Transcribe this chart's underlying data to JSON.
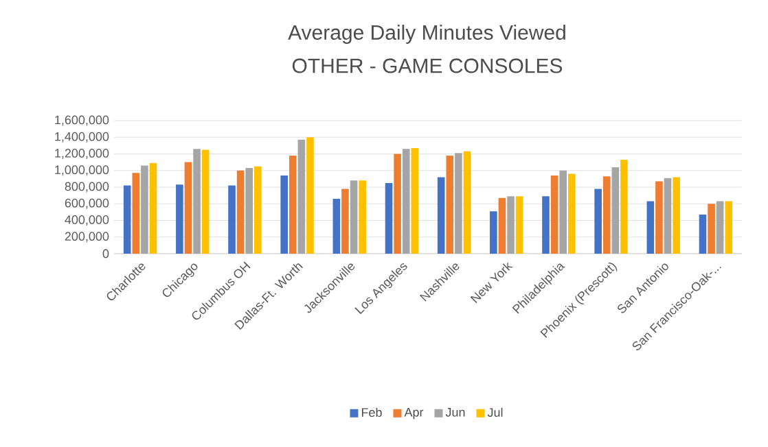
{
  "chart_data": {
    "type": "bar",
    "title": "Average Daily Minutes Viewed",
    "subtitle": "OTHER - GAME CONSOLES",
    "categories": [
      "Charlotte",
      "Chicago",
      "Columbus OH",
      "Dallas-Ft. Worth",
      "Jacksonville",
      "Los Angeles",
      "Nashville",
      "New York",
      "Philadelphia",
      "Phoenix (Prescott)",
      "San Antonio",
      "San Francisco-Oak-..."
    ],
    "series": [
      {
        "name": "Feb",
        "color": "#4472c4",
        "values": [
          820000,
          830000,
          820000,
          940000,
          660000,
          850000,
          920000,
          510000,
          690000,
          780000,
          630000,
          470000
        ]
      },
      {
        "name": "Apr",
        "color": "#ed7d31",
        "values": [
          970000,
          1100000,
          1000000,
          1180000,
          780000,
          1200000,
          1180000,
          670000,
          940000,
          930000,
          870000,
          600000
        ]
      },
      {
        "name": "Jun",
        "color": "#a5a5a5",
        "values": [
          1060000,
          1260000,
          1030000,
          1370000,
          880000,
          1260000,
          1210000,
          690000,
          1000000,
          1040000,
          910000,
          630000
        ]
      },
      {
        "name": "Jul",
        "color": "#ffc000",
        "values": [
          1090000,
          1250000,
          1050000,
          1400000,
          880000,
          1270000,
          1230000,
          690000,
          960000,
          1130000,
          920000,
          630000
        ]
      }
    ],
    "ylim": [
      0,
      1600000
    ],
    "yticks": [
      {
        "value": 0,
        "label": "0"
      },
      {
        "value": 200000,
        "label": "200,000"
      },
      {
        "value": 400000,
        "label": "400,000"
      },
      {
        "value": 600000,
        "label": "600,000"
      },
      {
        "value": 800000,
        "label": "800,000"
      },
      {
        "value": 1000000,
        "label": "1,000,000"
      },
      {
        "value": 1200000,
        "label": "1,200,000"
      },
      {
        "value": 1400000,
        "label": "1,400,000"
      },
      {
        "value": 1600000,
        "label": "1,600,000"
      }
    ],
    "grid": "y",
    "legend": "bottom"
  }
}
